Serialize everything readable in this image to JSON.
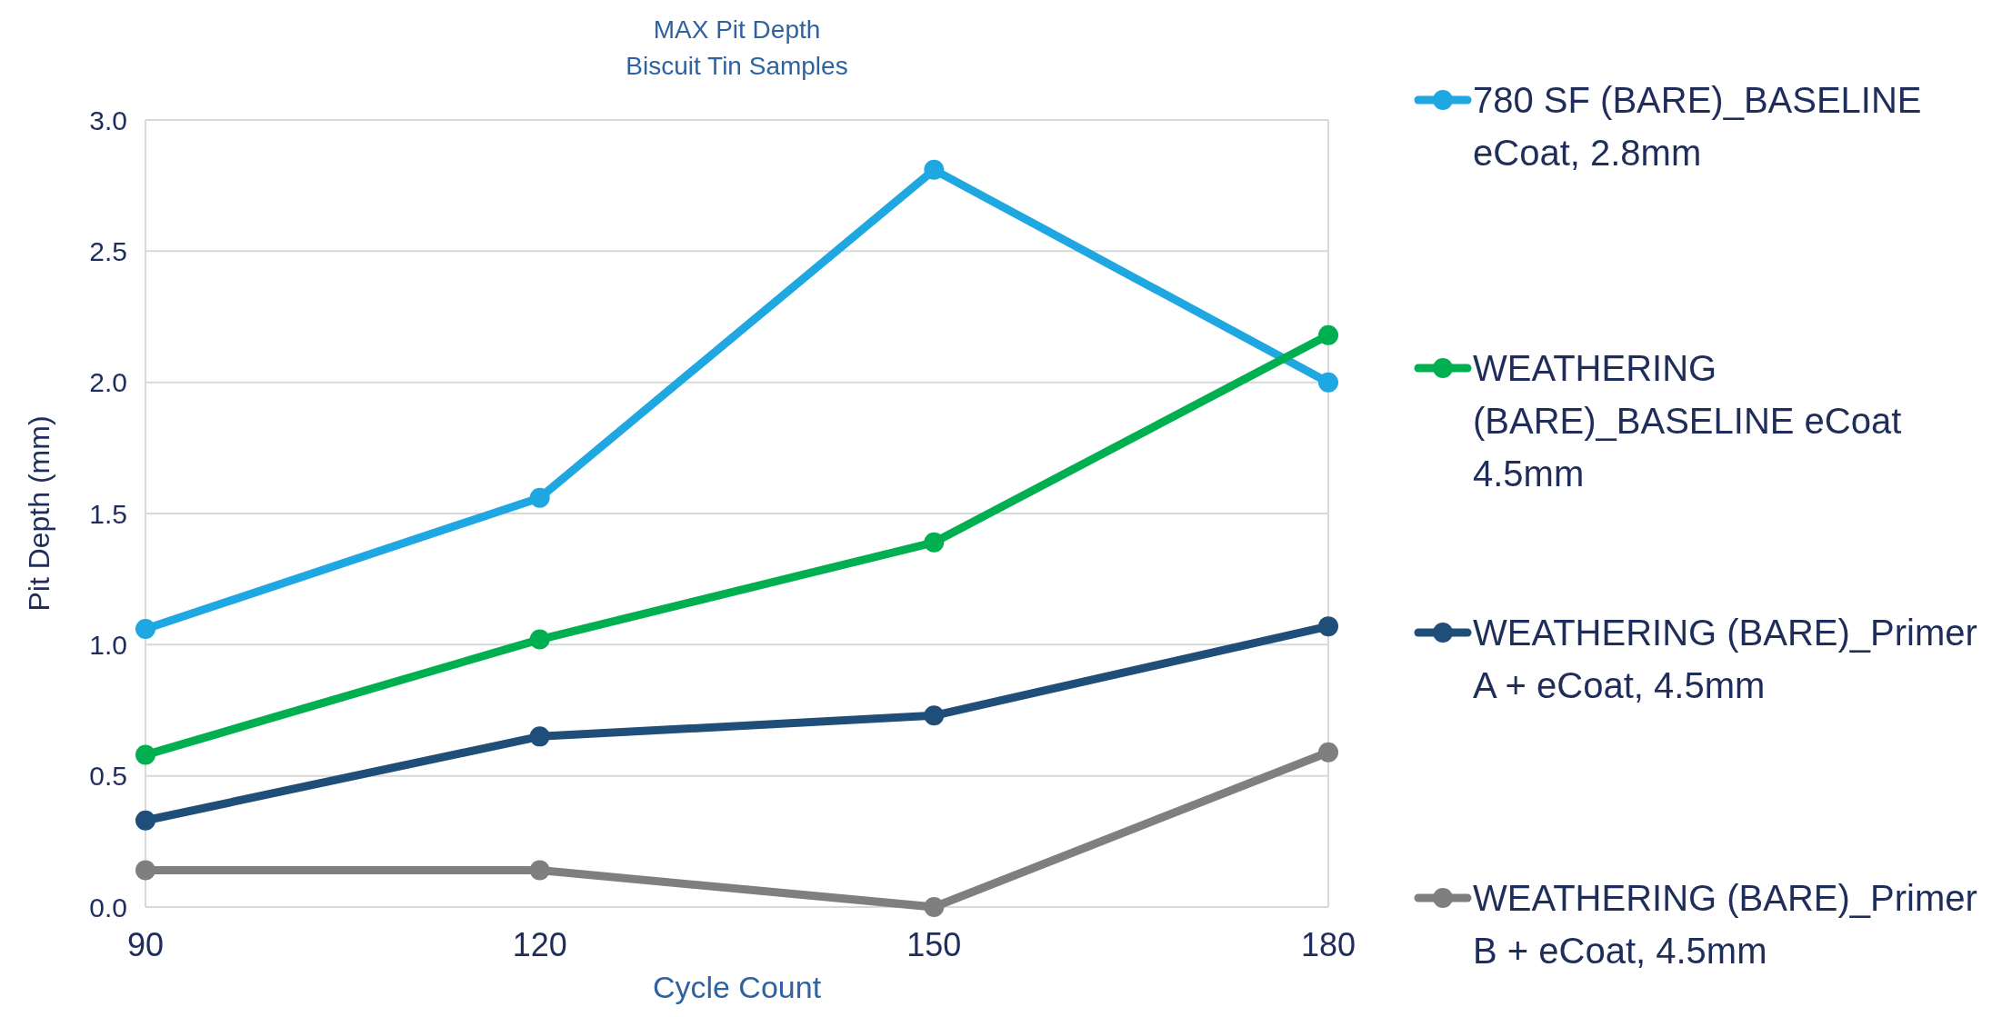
{
  "chart_data": {
    "type": "line",
    "title": "MAX Pit Depth",
    "subtitle": "Biscuit Tin Samples",
    "xlabel": "Cycle Count",
    "ylabel": "Pit Depth (mm)",
    "x": [
      90,
      120,
      150,
      180
    ],
    "xlim": [
      90,
      180
    ],
    "xticks": [
      90,
      120,
      150,
      180
    ],
    "ylim": [
      0,
      3
    ],
    "yticks": [
      {
        "value": 0,
        "label": "0.0"
      },
      {
        "value": 0.5,
        "label": "0.5"
      },
      {
        "value": 1,
        "label": "1.0"
      },
      {
        "value": 1.5,
        "label": "1.5"
      },
      {
        "value": 2,
        "label": "2.0"
      },
      {
        "value": 2.5,
        "label": "2.5"
      },
      {
        "value": 3,
        "label": "3.0"
      }
    ],
    "grid": "y",
    "legend": "right",
    "marker": "circle",
    "line_style": "solid",
    "series": [
      {
        "name": "780 SF (BARE)_BASELINE eCoat, 2.8mm",
        "color": "#1ea7e1",
        "values": [
          1.06,
          1.56,
          2.81,
          2.0
        ]
      },
      {
        "name": "WEATHERING (BARE)_BASELINE eCoat 4.5mm",
        "color": "#00b050",
        "values": [
          0.58,
          1.02,
          1.39,
          2.18
        ]
      },
      {
        "name": "WEATHERING (BARE)_Primer A + eCoat, 4.5mm",
        "color": "#1f4e79",
        "values": [
          0.33,
          0.65,
          0.73,
          1.07
        ]
      },
      {
        "name": "WEATHERING (BARE)_Primer B + eCoat, 4.5mm",
        "color": "#7f7f7f",
        "values": [
          0.14,
          0.14,
          0,
          0.59
        ]
      }
    ]
  }
}
